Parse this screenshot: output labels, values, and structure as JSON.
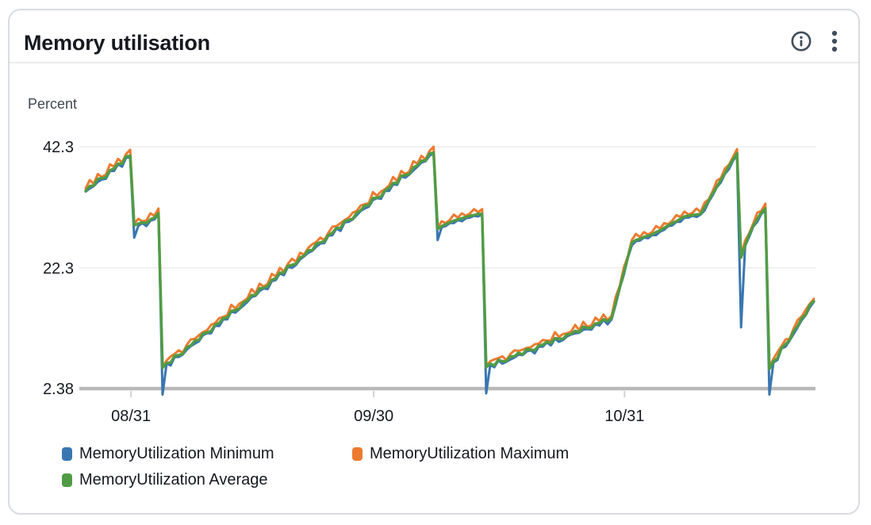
{
  "widget": {
    "title": "Memory utilisation",
    "header": {
      "icons": [
        {
          "name": "info-icon"
        },
        {
          "name": "kebab-menu-icon"
        }
      ],
      "icon_color": "#414d5c"
    }
  },
  "chart_data": {
    "type": "line",
    "title": "Memory utilisation",
    "y_axis": {
      "label": "Percent",
      "ticks": [
        42.3,
        22.3,
        2.38
      ],
      "range": [
        2.38,
        42.3
      ]
    },
    "x_axis": {
      "tick_labels": [
        "08/31",
        "09/30",
        "10/31"
      ],
      "tick_days": [
        5.6,
        35.6,
        66.6
      ],
      "range_days": [
        0,
        90
      ],
      "sample_step_days": 0.5
    },
    "grid": true,
    "legend_position": "bottom",
    "colors": {
      "grid": "#ededed",
      "axis_line": "#b9b9b9",
      "tick_mark": "#cfd3d8",
      "tick_text": "#16191f"
    },
    "series": [
      {
        "name": "MemoryUtilization Minimum",
        "color": "#3a76b0",
        "values": [
          34.9,
          35.4,
          35.8,
          36.5,
          36.9,
          37.0,
          38.3,
          38.3,
          39.4,
          39.0,
          40.5,
          40.5,
          27.3,
          29.2,
          29.7,
          29.2,
          30.1,
          30.3,
          31.2,
          1.4,
          6.5,
          6.2,
          7.6,
          7.6,
          8.0,
          8.8,
          9.4,
          9.8,
          10.2,
          11.2,
          11.5,
          11.5,
          12.8,
          12.7,
          13.8,
          13.8,
          15.1,
          14.9,
          15.5,
          16.1,
          16.7,
          17.5,
          17.7,
          18.5,
          18.9,
          18.8,
          20.1,
          20.3,
          21.4,
          21.1,
          22.5,
          22.3,
          22.8,
          23.7,
          24.2,
          24.8,
          25.1,
          25.8,
          26.3,
          26.4,
          27.6,
          27.7,
          28.8,
          28.4,
          29.8,
          29.9,
          30.3,
          31.0,
          31.7,
          32.1,
          32.4,
          33.5,
          33.8,
          33.7,
          35.0,
          35.0,
          36.1,
          36.0,
          37.4,
          37.2,
          37.7,
          38.4,
          39.0,
          39.7,
          39.9,
          40.8,
          41.2,
          26.9,
          29.0,
          29.2,
          29.7,
          29.7,
          30.2,
          30.0,
          30.5,
          30.6,
          30.9,
          30.8,
          31.1,
          1.6,
          6.3,
          5.9,
          7.0,
          6.5,
          6.8,
          7.2,
          7.5,
          8.0,
          7.9,
          8.5,
          8.7,
          8.2,
          9.3,
          9.3,
          10.0,
          9.5,
          10.6,
          10.1,
          10.4,
          11.0,
          11.3,
          11.5,
          11.6,
          12.1,
          12.2,
          12.1,
          13.0,
          12.8,
          13.7,
          13.0,
          13.8,
          16.2,
          18.9,
          21.1,
          23.9,
          26.0,
          26.7,
          26.8,
          27.3,
          27.2,
          27.7,
          27.7,
          28.3,
          28.6,
          29.2,
          29.3,
          29.9,
          29.9,
          30.6,
          30.6,
          30.9,
          30.7,
          31.1,
          31.8,
          33.2,
          34.3,
          35.6,
          36.4,
          37.8,
          38.6,
          40.0,
          40.9,
          12.5,
          25.9,
          27.4,
          29.1,
          29.9,
          31.2,
          31.8,
          1.4,
          6.7,
          7.1,
          9.0,
          9.3,
          10.3,
          11.4,
          12.5,
          13.7,
          14.5,
          15.8,
          16.7
        ]
      },
      {
        "name": "MemoryUtilization Maximum",
        "color": "#ec7b2f",
        "values": [
          35.4,
          36.8,
          36.2,
          37.8,
          37.3,
          37.7,
          39.4,
          39.0,
          40.3,
          39.7,
          41.1,
          41.8,
          29.6,
          30.4,
          30.0,
          30.1,
          31.3,
          30.9,
          32.1,
          6.0,
          7.0,
          7.7,
          8.1,
          8.7,
          8.3,
          9.6,
          10.5,
          10.6,
          11.2,
          11.7,
          12.0,
          12.9,
          13.2,
          14.0,
          14.2,
          14.5,
          16.2,
          15.6,
          16.4,
          16.8,
          17.3,
          18.8,
          18.1,
          19.7,
          19.2,
          19.7,
          21.3,
          20.9,
          22.3,
          21.7,
          23.0,
          23.8,
          23.3,
          24.8,
          24.5,
          25.6,
          26.2,
          26.6,
          27.3,
          26.9,
          28.1,
          29.1,
          29.2,
          29.7,
          30.2,
          30.6,
          31.4,
          31.7,
          32.6,
          32.8,
          33.0,
          34.8,
          34.2,
          34.9,
          35.3,
          35.9,
          37.3,
          36.6,
          38.3,
          37.8,
          38.2,
          39.9,
          39.5,
          40.8,
          40.2,
          41.6,
          42.3,
          29.0,
          30.0,
          29.7,
          30.2,
          31.1,
          30.6,
          31.3,
          30.9,
          31.3,
          32.0,
          31.5,
          32.0,
          6.1,
          6.9,
          7.2,
          7.4,
          7.7,
          7.1,
          8.1,
          8.7,
          8.6,
          8.8,
          9.1,
          9.2,
          9.7,
          9.8,
          10.4,
          10.3,
          10.3,
          11.7,
          10.9,
          11.4,
          11.5,
          11.8,
          12.9,
          12.0,
          13.4,
          12.6,
          12.8,
          14.1,
          13.5,
          14.6,
          13.7,
          14.4,
          17.5,
          19.3,
          22.3,
          24.2,
          26.9,
          27.9,
          27.4,
          28.2,
          27.8,
          28.2,
          29.2,
          28.8,
          29.7,
          29.5,
          30.1,
          31.0,
          30.7,
          31.6,
          31.1,
          31.4,
          32.1,
          31.5,
          33.1,
          33.6,
          35.0,
          36.7,
          37.1,
          38.7,
          39.3,
          40.6,
          41.9,
          24.3,
          26.8,
          28.0,
          29.6,
          31.4,
          31.7,
          32.9,
          5.8,
          7.3,
          8.4,
          9.4,
          10.5,
          10.6,
          12.3,
          13.7,
          14.3,
          15.4,
          16.4,
          17.2
        ]
      },
      {
        "name": "MemoryUtilization Average",
        "color": "#509c44",
        "values": [
          35.0,
          35.8,
          35.9,
          37.0,
          37.1,
          37.3,
          38.4,
          38.7,
          39.5,
          39.5,
          40.7,
          40.8,
          29.3,
          29.6,
          29.8,
          29.7,
          30.3,
          30.6,
          31.3,
          5.8,
          6.6,
          6.7,
          7.8,
          7.9,
          8.1,
          9.2,
          9.5,
          10.3,
          10.4,
          11.5,
          11.6,
          11.9,
          12.9,
          13.2,
          14.0,
          14.1,
          15.2,
          15.3,
          15.6,
          16.6,
          16.9,
          17.8,
          17.8,
          18.9,
          19.0,
          19.3,
          20.3,
          20.6,
          21.5,
          21.5,
          22.6,
          22.8,
          23.0,
          24.0,
          24.3,
          25.2,
          25.2,
          26.3,
          26.5,
          26.7,
          27.7,
          28.1,
          28.9,
          28.9,
          30.0,
          30.2,
          30.4,
          31.4,
          31.8,
          32.6,
          32.6,
          33.8,
          33.9,
          34.1,
          35.1,
          35.5,
          36.3,
          36.3,
          37.5,
          37.6,
          37.8,
          38.9,
          39.2,
          40.0,
          40.0,
          41.2,
          41.3,
          28.7,
          29.2,
          29.5,
          29.8,
          30.1,
          30.3,
          30.5,
          30.7,
          30.9,
          31.0,
          31.2,
          31.2,
          5.9,
          6.5,
          6.2,
          7.1,
          6.9,
          6.9,
          7.7,
          7.7,
          8.3,
          8.0,
          8.9,
          8.8,
          8.7,
          9.5,
          9.6,
          10.1,
          9.9,
          10.7,
          10.6,
          10.6,
          11.3,
          11.4,
          11.9,
          11.7,
          12.6,
          12.4,
          12.4,
          13.1,
          13.2,
          13.8,
          13.5,
          14.0,
          16.5,
          19.0,
          21.5,
          24.0,
          26.5,
          26.9,
          27.1,
          27.4,
          27.6,
          27.8,
          28.2,
          28.5,
          28.9,
          29.3,
          29.7,
          30.0,
          30.4,
          30.8,
          30.9,
          31.0,
          31.1,
          31.2,
          32.3,
          33.4,
          34.6,
          35.7,
          36.8,
          37.9,
          39.1,
          40.2,
          41.2,
          24.0,
          26.0,
          27.8,
          29.2,
          30.4,
          31.4,
          32.1,
          5.6,
          6.9,
          7.4,
          9.1,
          9.7,
          10.4,
          11.9,
          12.7,
          14.0,
          14.6,
          16.2,
          16.8
        ]
      }
    ]
  }
}
